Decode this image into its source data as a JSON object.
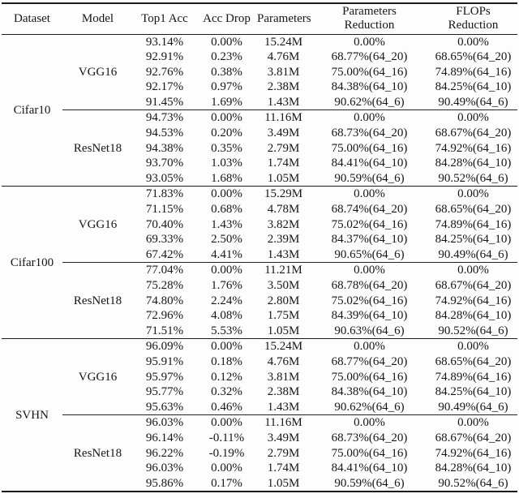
{
  "table": {
    "headers": [
      "Dataset",
      "Model",
      "Top1 Acc",
      "Acc Drop",
      "Parameters",
      "Parameters\nReduction",
      "FLOPs\nReduction"
    ],
    "column_keys": [
      "top1_acc",
      "acc_drop",
      "parameters",
      "parameters_reduction",
      "flops_reduction"
    ],
    "groups": [
      {
        "dataset": "Cifar10",
        "models": [
          {
            "model": "VGG16",
            "rows": [
              [
                "93.14%",
                "0.00%",
                "15.24M",
                "0.00%",
                "0.00%"
              ],
              [
                "92.91%",
                "0.23%",
                "4.76M",
                "68.77%(64_20)",
                "68.65%(64_20)"
              ],
              [
                "92.76%",
                "0.38%",
                "3.81M",
                "75.00%(64_16)",
                "74.89%(64_16)"
              ],
              [
                "92.17%",
                "0.97%",
                "2.38M",
                "84.38%(64_10)",
                "84.25%(64_10)"
              ],
              [
                "91.45%",
                "1.69%",
                "1.43M",
                "90.62%(64_6)",
                "90.49%(64_6)"
              ]
            ]
          },
          {
            "model": "ResNet18",
            "rows": [
              [
                "94.73%",
                "0.00%",
                "11.16M",
                "0.00%",
                "0.00%"
              ],
              [
                "94.53%",
                "0.20%",
                "3.49M",
                "68.73%(64_20)",
                "68.67%(64_20)"
              ],
              [
                "94.38%",
                "0.35%",
                "2.79M",
                "75.00%(64_16)",
                "74.92%(64_16)"
              ],
              [
                "93.70%",
                "1.03%",
                "1.74M",
                "84.41%(64_10)",
                "84.28%(64_10)"
              ],
              [
                "93.05%",
                "1.68%",
                "1.05M",
                "90.59%(64_6)",
                "90.52%(64_6)"
              ]
            ]
          }
        ]
      },
      {
        "dataset": "Cifar100",
        "models": [
          {
            "model": "VGG16",
            "rows": [
              [
                "71.83%",
                "0.00%",
                "15.29M",
                "0.00%",
                "0.00%"
              ],
              [
                "71.15%",
                "0.68%",
                "4.78M",
                "68.74%(64_20)",
                "68.65%(64_20)"
              ],
              [
                "70.40%",
                "1.43%",
                "3.82M",
                "75.02%(64_16)",
                "74.89%(64_16)"
              ],
              [
                "69.33%",
                "2.50%",
                "2.39M",
                "84.37%(64_10)",
                "84.25%(64_10)"
              ],
              [
                "67.42%",
                "4.41%",
                "1.43M",
                "90.65%(64_6)",
                "90.49%(64_6)"
              ]
            ]
          },
          {
            "model": "ResNet18",
            "rows": [
              [
                "77.04%",
                "0.00%",
                "11.21M",
                "0.00%",
                "0.00%"
              ],
              [
                "75.28%",
                "1.76%",
                "3.50M",
                "68.78%(64_20)",
                "68.67%(64_20)"
              ],
              [
                "74.80%",
                "2.24%",
                "2.80M",
                "75.02%(64_16)",
                "74.92%(64_16)"
              ],
              [
                "72.96%",
                "4.08%",
                "1.75M",
                "84.39%(64_10)",
                "84.28%(64_10)"
              ],
              [
                "71.51%",
                "5.53%",
                "1.05M",
                "90.63%(64_6)",
                "90.52%(64_6)"
              ]
            ]
          }
        ]
      },
      {
        "dataset": "SVHN",
        "models": [
          {
            "model": "VGG16",
            "rows": [
              [
                "96.09%",
                "0.00%",
                "15.24M",
                "0.00%",
                "0.00%"
              ],
              [
                "95.91%",
                "0.18%",
                "4.76M",
                "68.77%(64_20)",
                "68.65%(64_20)"
              ],
              [
                "95.97%",
                "0.12%",
                "3.81M",
                "75.00%(64_16)",
                "74.89%(64_16)"
              ],
              [
                "95.77%",
                "0.32%",
                "2.38M",
                "84.38%(64_10)",
                "84.25%(64_10)"
              ],
              [
                "95.63%",
                "0.46%",
                "1.43M",
                "90.62%(64_6)",
                "90.49%(64_6)"
              ]
            ]
          },
          {
            "model": "ResNet18",
            "rows": [
              [
                "96.03%",
                "0.00%",
                "11.16M",
                "0.00%",
                "0.00%"
              ],
              [
                "96.14%",
                "-0.11%",
                "3.49M",
                "68.73%(64_20)",
                "68.67%(64_20)"
              ],
              [
                "96.22%",
                "-0.19%",
                "2.79M",
                "75.00%(64_16)",
                "74.92%(64_16)"
              ],
              [
                "96.03%",
                "0.00%",
                "1.74M",
                "84.41%(64_10)",
                "84.28%(64_10)"
              ],
              [
                "95.86%",
                "0.17%",
                "1.05M",
                "90.59%(64_6)",
                "90.52%(64_6)"
              ]
            ]
          }
        ]
      }
    ]
  }
}
